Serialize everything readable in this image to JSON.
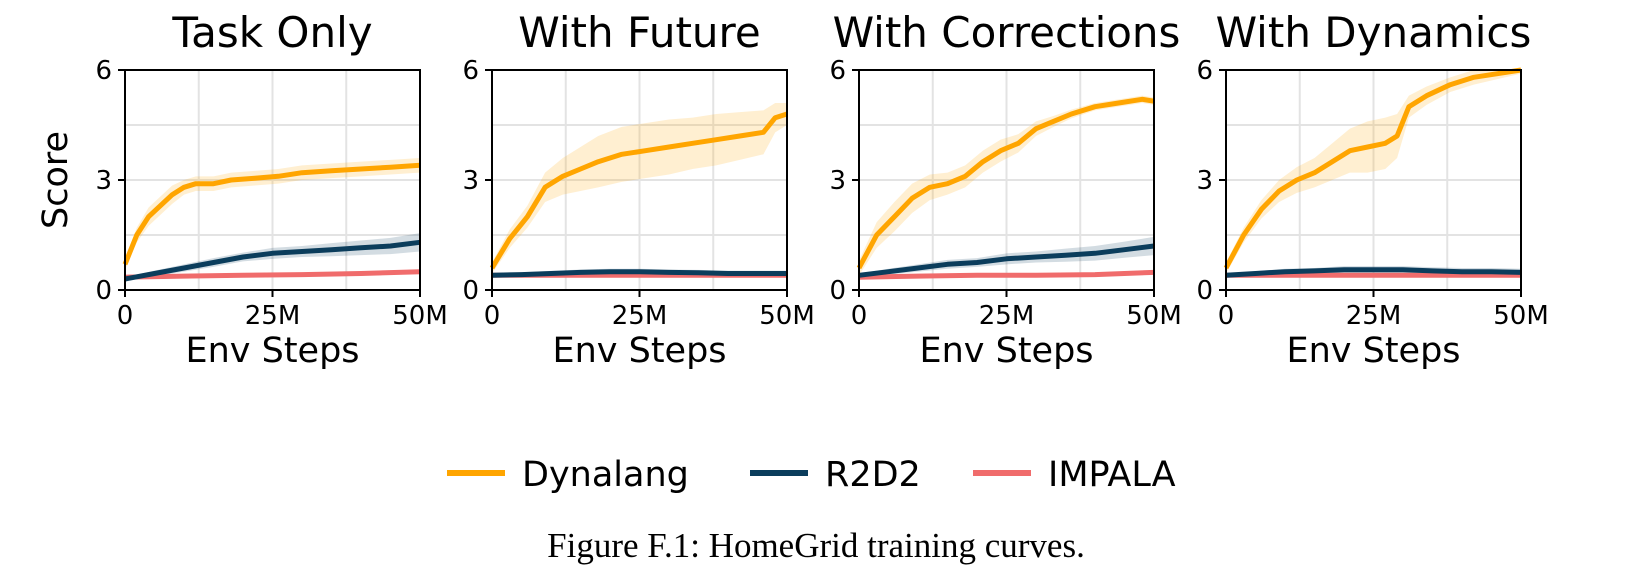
{
  "figure": {
    "caption": "Figure F.1: HomeGrid training curves.",
    "colors": {
      "Dynalang": "#FFA500",
      "R2D2": "#0B3D5C",
      "IMPALA": "#F06C6C"
    },
    "legend": [
      "Dynalang",
      "R2D2",
      "IMPALA"
    ]
  },
  "chart_data": [
    {
      "type": "line",
      "title": "Task Only",
      "xlabel": "Env Steps",
      "ylabel": "Score",
      "xlim": [
        0,
        50
      ],
      "ylim": [
        0,
        6
      ],
      "xticks": [
        0,
        25,
        50
      ],
      "xtick_labels": [
        "0",
        "25M",
        "50M"
      ],
      "yticks": [
        0,
        3,
        6
      ],
      "ytick_labels": [
        "0",
        "3",
        "6"
      ],
      "grid": true,
      "series": [
        {
          "name": "Dynalang",
          "x": [
            0,
            2,
            4,
            6,
            8,
            10,
            12,
            15,
            18,
            22,
            26,
            30,
            35,
            40,
            45,
            50
          ],
          "values": [
            0.7,
            1.5,
            2.0,
            2.3,
            2.6,
            2.8,
            2.9,
            2.9,
            3.0,
            3.05,
            3.1,
            3.2,
            3.25,
            3.3,
            3.35,
            3.4
          ],
          "band": [
            0.15,
            0.2,
            0.25,
            0.25,
            0.25,
            0.2,
            0.2,
            0.2,
            0.2,
            0.2,
            0.2,
            0.2,
            0.2,
            0.2,
            0.2,
            0.2
          ]
        },
        {
          "name": "R2D2",
          "x": [
            0,
            5,
            10,
            15,
            20,
            25,
            30,
            35,
            40,
            45,
            50
          ],
          "values": [
            0.3,
            0.45,
            0.6,
            0.75,
            0.9,
            1.0,
            1.05,
            1.1,
            1.15,
            1.2,
            1.3
          ],
          "band": [
            0.05,
            0.08,
            0.1,
            0.12,
            0.12,
            0.15,
            0.15,
            0.18,
            0.2,
            0.22,
            0.25
          ]
        },
        {
          "name": "IMPALA",
          "x": [
            0,
            10,
            20,
            30,
            40,
            50
          ],
          "values": [
            0.35,
            0.38,
            0.4,
            0.42,
            0.45,
            0.5
          ],
          "band": [
            0.03,
            0.03,
            0.03,
            0.04,
            0.04,
            0.04
          ]
        }
      ]
    },
    {
      "type": "line",
      "title": "With Future",
      "xlabel": "Env Steps",
      "ylabel": "",
      "xlim": [
        0,
        50
      ],
      "ylim": [
        0,
        6
      ],
      "xticks": [
        0,
        25,
        50
      ],
      "xtick_labels": [
        "0",
        "25M",
        "50M"
      ],
      "yticks": [
        0,
        3,
        6
      ],
      "ytick_labels": [
        "0",
        "3",
        "6"
      ],
      "grid": true,
      "series": [
        {
          "name": "Dynalang",
          "x": [
            0,
            3,
            6,
            9,
            12,
            15,
            18,
            22,
            26,
            30,
            34,
            38,
            42,
            46,
            48,
            50
          ],
          "values": [
            0.6,
            1.4,
            2.0,
            2.8,
            3.1,
            3.3,
            3.5,
            3.7,
            3.8,
            3.9,
            4.0,
            4.1,
            4.2,
            4.3,
            4.7,
            4.8
          ],
          "band": [
            0.15,
            0.25,
            0.3,
            0.4,
            0.5,
            0.6,
            0.7,
            0.75,
            0.75,
            0.75,
            0.7,
            0.7,
            0.65,
            0.6,
            0.4,
            0.3
          ]
        },
        {
          "name": "R2D2",
          "x": [
            0,
            5,
            10,
            15,
            20,
            25,
            30,
            35,
            40,
            45,
            50
          ],
          "values": [
            0.4,
            0.42,
            0.45,
            0.48,
            0.5,
            0.5,
            0.48,
            0.47,
            0.45,
            0.45,
            0.45
          ],
          "band": [
            0.05,
            0.06,
            0.07,
            0.08,
            0.08,
            0.08,
            0.08,
            0.08,
            0.08,
            0.08,
            0.08
          ]
        },
        {
          "name": "IMPALA",
          "x": [
            0,
            10,
            20,
            30,
            40,
            50
          ],
          "values": [
            0.4,
            0.4,
            0.4,
            0.4,
            0.4,
            0.4
          ],
          "band": [
            0.03,
            0.03,
            0.03,
            0.03,
            0.03,
            0.03
          ]
        }
      ]
    },
    {
      "type": "line",
      "title": "With Corrections",
      "xlabel": "Env Steps",
      "ylabel": "",
      "xlim": [
        0,
        50
      ],
      "ylim": [
        0,
        6
      ],
      "xticks": [
        0,
        25,
        50
      ],
      "xtick_labels": [
        "0",
        "25M",
        "50M"
      ],
      "yticks": [
        0,
        3,
        6
      ],
      "ytick_labels": [
        "0",
        "3",
        "6"
      ],
      "grid": true,
      "series": [
        {
          "name": "Dynalang",
          "x": [
            0,
            3,
            6,
            9,
            12,
            15,
            18,
            21,
            24,
            27,
            30,
            33,
            36,
            40,
            44,
            48,
            50
          ],
          "values": [
            0.6,
            1.5,
            2.0,
            2.5,
            2.8,
            2.9,
            3.1,
            3.5,
            3.8,
            4.0,
            4.4,
            4.6,
            4.8,
            5.0,
            5.1,
            5.2,
            5.15
          ],
          "band": [
            0.2,
            0.35,
            0.4,
            0.4,
            0.35,
            0.3,
            0.3,
            0.3,
            0.3,
            0.25,
            0.2,
            0.15,
            0.12,
            0.1,
            0.1,
            0.1,
            0.1
          ]
        },
        {
          "name": "R2D2",
          "x": [
            0,
            5,
            10,
            15,
            20,
            25,
            30,
            35,
            40,
            45,
            50
          ],
          "values": [
            0.4,
            0.5,
            0.6,
            0.7,
            0.75,
            0.85,
            0.9,
            0.95,
            1.0,
            1.1,
            1.2
          ],
          "band": [
            0.05,
            0.08,
            0.1,
            0.12,
            0.12,
            0.15,
            0.15,
            0.18,
            0.2,
            0.22,
            0.25
          ]
        },
        {
          "name": "IMPALA",
          "x": [
            0,
            10,
            20,
            30,
            40,
            50
          ],
          "values": [
            0.35,
            0.38,
            0.4,
            0.4,
            0.42,
            0.48
          ],
          "band": [
            0.03,
            0.03,
            0.03,
            0.04,
            0.04,
            0.04
          ]
        }
      ]
    },
    {
      "type": "line",
      "title": "With Dynamics",
      "xlabel": "Env Steps",
      "ylabel": "",
      "xlim": [
        0,
        50
      ],
      "ylim": [
        0,
        6
      ],
      "xticks": [
        0,
        25,
        50
      ],
      "xtick_labels": [
        "0",
        "25M",
        "50M"
      ],
      "yticks": [
        0,
        3,
        6
      ],
      "ytick_labels": [
        "0",
        "3",
        "6"
      ],
      "grid": true,
      "series": [
        {
          "name": "Dynalang",
          "x": [
            0,
            3,
            6,
            9,
            12,
            15,
            18,
            21,
            24,
            27,
            29,
            31,
            34,
            38,
            42,
            46,
            50
          ],
          "values": [
            0.6,
            1.5,
            2.2,
            2.7,
            3.0,
            3.2,
            3.5,
            3.8,
            3.9,
            4.0,
            4.2,
            5.0,
            5.3,
            5.6,
            5.8,
            5.9,
            6.0
          ],
          "band": [
            0.15,
            0.2,
            0.25,
            0.3,
            0.35,
            0.4,
            0.5,
            0.6,
            0.7,
            0.7,
            0.6,
            0.3,
            0.25,
            0.2,
            0.2,
            0.15,
            0.1
          ]
        },
        {
          "name": "R2D2",
          "x": [
            0,
            5,
            10,
            15,
            20,
            25,
            30,
            35,
            40,
            45,
            50
          ],
          "values": [
            0.4,
            0.45,
            0.5,
            0.52,
            0.55,
            0.55,
            0.55,
            0.52,
            0.5,
            0.5,
            0.48
          ],
          "band": [
            0.05,
            0.06,
            0.08,
            0.08,
            0.1,
            0.1,
            0.1,
            0.1,
            0.1,
            0.1,
            0.1
          ]
        },
        {
          "name": "IMPALA",
          "x": [
            0,
            10,
            20,
            30,
            40,
            50
          ],
          "values": [
            0.4,
            0.4,
            0.4,
            0.4,
            0.4,
            0.4
          ],
          "band": [
            0.03,
            0.03,
            0.03,
            0.03,
            0.03,
            0.03
          ]
        }
      ]
    }
  ]
}
